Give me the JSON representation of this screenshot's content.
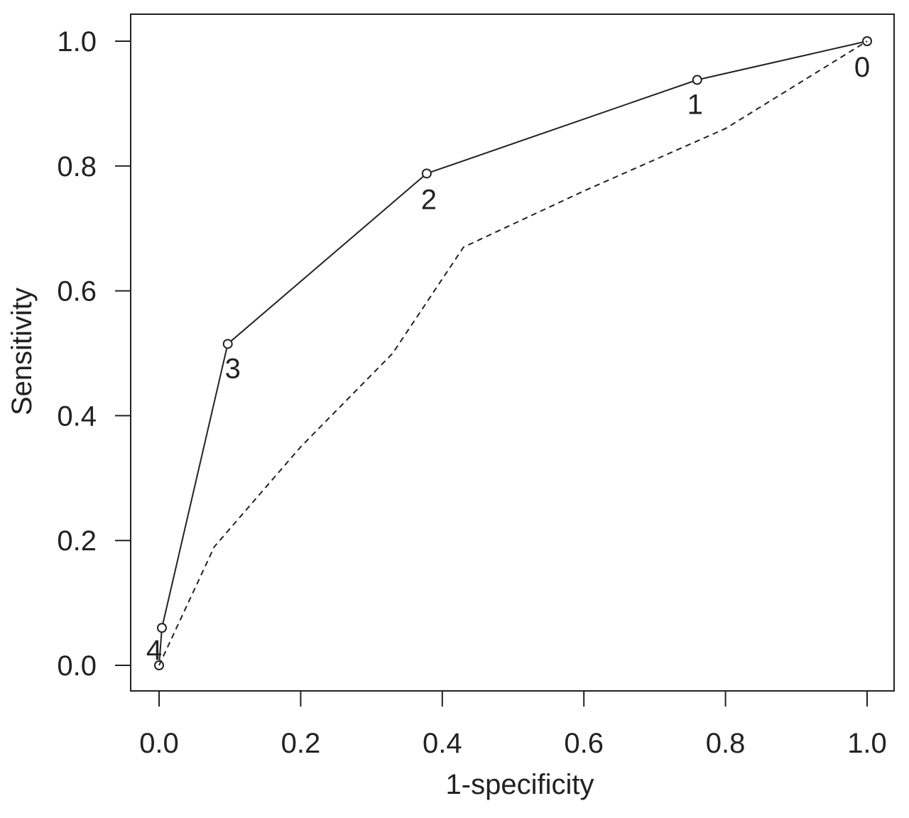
{
  "chart_data": {
    "type": "line",
    "xlabel": "1-specificity",
    "ylabel": "Sensitivity",
    "xlim": [
      0.0,
      1.0
    ],
    "ylim": [
      0.0,
      1.0
    ],
    "x_ticks": [
      "0.0",
      "0.2",
      "0.4",
      "0.6",
      "0.8",
      "1.0"
    ],
    "y_ticks": [
      "0.0",
      "0.2",
      "0.4",
      "0.6",
      "0.8",
      "1.0"
    ],
    "grid": false,
    "series": [
      {
        "style": "solid",
        "markers": "open-circle",
        "x": [
          0.0,
          0.004,
          0.097,
          0.378,
          0.76,
          1.0
        ],
        "y": [
          0.0,
          0.06,
          0.515,
          0.788,
          0.938,
          1.0
        ],
        "point_labels": [
          "4",
          "",
          "3",
          "2",
          "1",
          "0"
        ]
      },
      {
        "style": "dashed",
        "markers": "none",
        "x": [
          0.0,
          0.078,
          0.2,
          0.33,
          0.43,
          0.6,
          0.8,
          1.0
        ],
        "y": [
          0.0,
          0.19,
          0.35,
          0.5,
          0.67,
          0.76,
          0.86,
          1.0
        ]
      }
    ],
    "colors": {
      "line": "#222222",
      "axis": "#222222",
      "background": "#ffffff"
    }
  }
}
